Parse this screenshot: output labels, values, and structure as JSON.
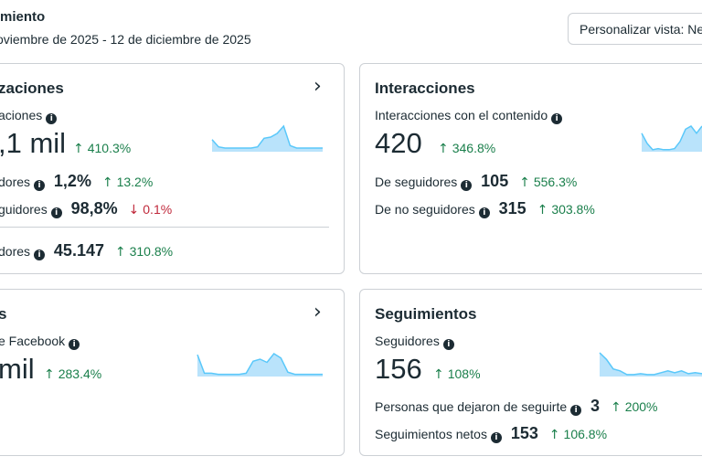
{
  "header": {
    "title": "miento",
    "date_range": "oviembre de 2025 - 12 de diciembre de 2025",
    "customize_button": "Personalizar vista: Ne"
  },
  "cards": {
    "views": {
      "title": "zaciones",
      "metric_label": "aciones",
      "metric_value": ",1 mil",
      "metric_change": "410.3%",
      "row1_label": "dores",
      "row1_value": "1,2%",
      "row1_change": "13.2%",
      "row2_label": "guidores",
      "row2_value": "98,8%",
      "row2_change": "0.1%",
      "row3_label": "dores",
      "row3_value": "45.147",
      "row3_change": "310.8%",
      "sparkline": [
        10,
        4,
        3,
        3,
        3,
        3,
        3,
        4,
        11,
        12,
        15,
        21,
        5,
        3,
        3,
        3,
        3,
        3
      ]
    },
    "interactions": {
      "title": "Interacciones",
      "metric_label": "Interacciones con el contenido",
      "metric_value": "420",
      "metric_change": "346.8%",
      "row1_label": "De seguidores",
      "row1_value": "105",
      "row1_change": "556.3%",
      "row2_label": "De no seguidores",
      "row2_value": "315",
      "row2_change": "303.8%",
      "sparkline": [
        18,
        8,
        2,
        3,
        2,
        2,
        3,
        10,
        22,
        25,
        18,
        25
      ]
    },
    "facebook": {
      "title": "s",
      "metric_label": "e Facebook",
      "metric_value": "mil",
      "metric_change": "283.4%",
      "sparkline": [
        20,
        3,
        3,
        2,
        2,
        2,
        2,
        3,
        14,
        16,
        13,
        21,
        17,
        4,
        2,
        2,
        2,
        2,
        2
      ]
    },
    "follows": {
      "title": "Seguimientos",
      "metric_label": "Seguidores",
      "metric_value": "156",
      "metric_change": "108%",
      "row1_label": "Personas que dejaron de seguirte",
      "row1_value": "3",
      "row1_change": "200%",
      "row2_label": "Seguimientos netos",
      "row2_value": "153",
      "row2_change": "106.8%",
      "sparkline": [
        25,
        18,
        8,
        6,
        2,
        2,
        3,
        2,
        2,
        4,
        6,
        4,
        6,
        3,
        4,
        3
      ]
    }
  },
  "icons": {
    "up_arrow": "↑",
    "down_arrow": "↓",
    "info": "i",
    "chevron": "›"
  },
  "colors": {
    "positive": "#1a7f4b",
    "negative": "#c0293b",
    "sparkline_fill": "#b9e3fb",
    "sparkline_stroke": "#5ac8fa"
  }
}
